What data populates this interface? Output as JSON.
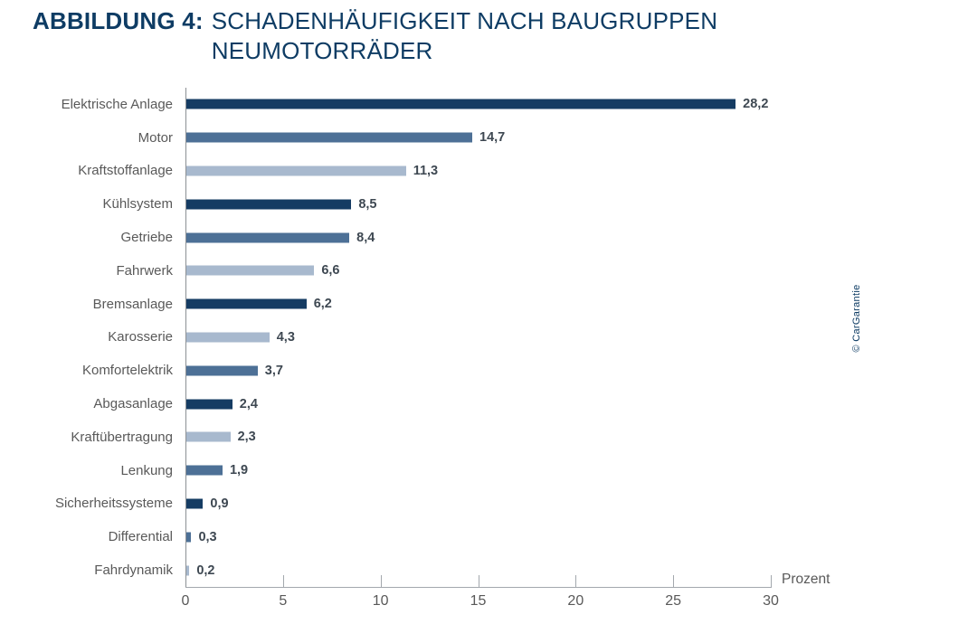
{
  "title": {
    "label": "ABBILDUNG 4:",
    "line1": "SCHADENHÄUFIGKEIT NACH BAUGRUPPEN",
    "line2": "NEUMOTORRÄDER"
  },
  "watermark": "© CarGarantie",
  "chart_data": {
    "type": "bar",
    "orientation": "horizontal",
    "title": "ABBILDUNG 4: SCHADENHÄUFIGKEIT NACH BAUGRUPPEN NEUMOTORRÄDER",
    "categories": [
      "Elektrische Anlage",
      "Motor",
      "Kraftstoffanlage",
      "Kühlsystem",
      "Getriebe",
      "Fahrwerk",
      "Bremsanlage",
      "Karosserie",
      "Komfortelektrik",
      "Abgasanlage",
      "Kraftübertragung",
      "Lenkung",
      "Sicherheitssysteme",
      "Differential",
      "Fahrdynamik"
    ],
    "values": [
      28.2,
      14.7,
      11.3,
      8.5,
      8.4,
      6.6,
      6.2,
      4.3,
      3.7,
      2.4,
      2.3,
      1.9,
      0.9,
      0.3,
      0.2
    ],
    "value_labels": [
      "28,2",
      "14,7",
      "11,3",
      "8,5",
      "8,4",
      "6,6",
      "6,2",
      "4,3",
      "3,7",
      "2,4",
      "2,3",
      "1,9",
      "0,9",
      "0,3",
      "0,2"
    ],
    "bar_tones": [
      "dark",
      "medium",
      "light",
      "dark",
      "medium",
      "light",
      "dark",
      "light",
      "medium",
      "dark",
      "light",
      "medium",
      "dark",
      "medium",
      "light"
    ],
    "colors": {
      "dark": "#153c63",
      "medium": "#4d7096",
      "light": "#a8b9ce"
    },
    "xlabel": "Prozent",
    "ylabel": "",
    "xlim": [
      0,
      30
    ],
    "x_ticks": [
      0,
      5,
      10,
      15,
      20,
      25,
      30
    ],
    "grid": false,
    "legend": "none"
  }
}
